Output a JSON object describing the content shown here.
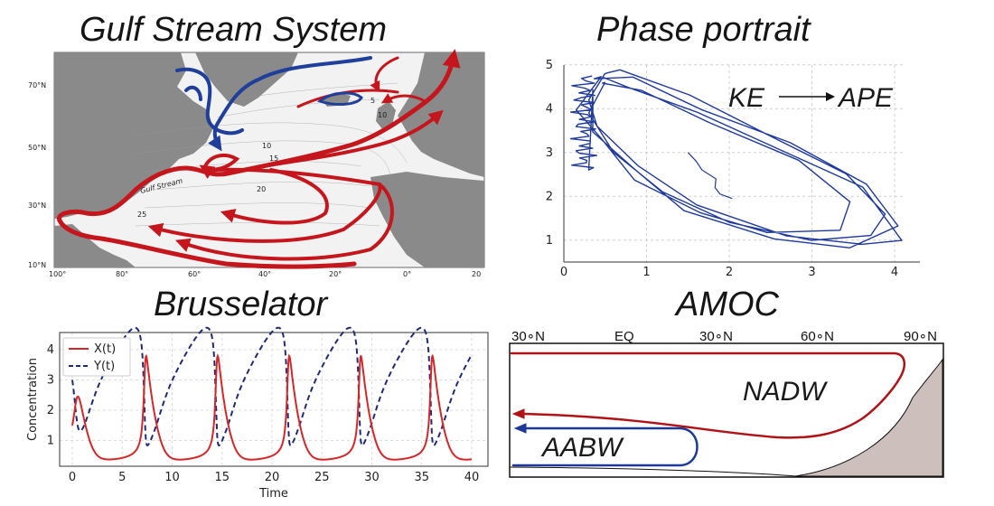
{
  "titles": {
    "gulf": "Gulf Stream System",
    "phase": "Phase portrait",
    "bruss": "Brusselator",
    "amoc": "AMOC"
  },
  "gulf_map": {
    "lat_labels": [
      "70°N",
      "50°N",
      "30°N",
      "10°N"
    ],
    "lon_labels": [
      "100°",
      "80°",
      "60°",
      "40°",
      "20°",
      "0°",
      "20"
    ],
    "stream_label": "Gulf Stream",
    "contour_labels": [
      "10",
      "15",
      "20",
      "25",
      "5",
      "10"
    ],
    "colors": {
      "land": "#8a8a8a",
      "ocean": "#f2f2f2",
      "warm": "#c4161c",
      "cold": "#1f3f9a"
    }
  },
  "phase_portrait": {
    "x_ticks": [
      "0",
      "1",
      "2",
      "3",
      "4"
    ],
    "y_ticks": [
      "1",
      "2",
      "3",
      "4",
      "5"
    ],
    "annotation_left": "KE",
    "annotation_right": "APE",
    "colors": {
      "trajectory": "#1f3a9a"
    }
  },
  "brusselator": {
    "x_label": "Time",
    "y_label": "Concentration",
    "x_ticks": [
      "0",
      "5",
      "10",
      "15",
      "20",
      "25",
      "30",
      "35",
      "40"
    ],
    "y_ticks": [
      "1",
      "2",
      "3",
      "4"
    ],
    "legend": [
      "X(t)",
      "Y(t)"
    ],
    "colors": {
      "x": "#d62728",
      "y": "#1f2a7a"
    }
  },
  "amoc": {
    "lat_labels": [
      "30∘N",
      "EQ",
      "30∘N",
      "60∘N",
      "90∘N"
    ],
    "nadw": "NADW",
    "aabw": "AABW",
    "colors": {
      "nadw": "#b01218",
      "aabw": "#1d3a9a",
      "topography": "#cdbfbc"
    }
  }
}
